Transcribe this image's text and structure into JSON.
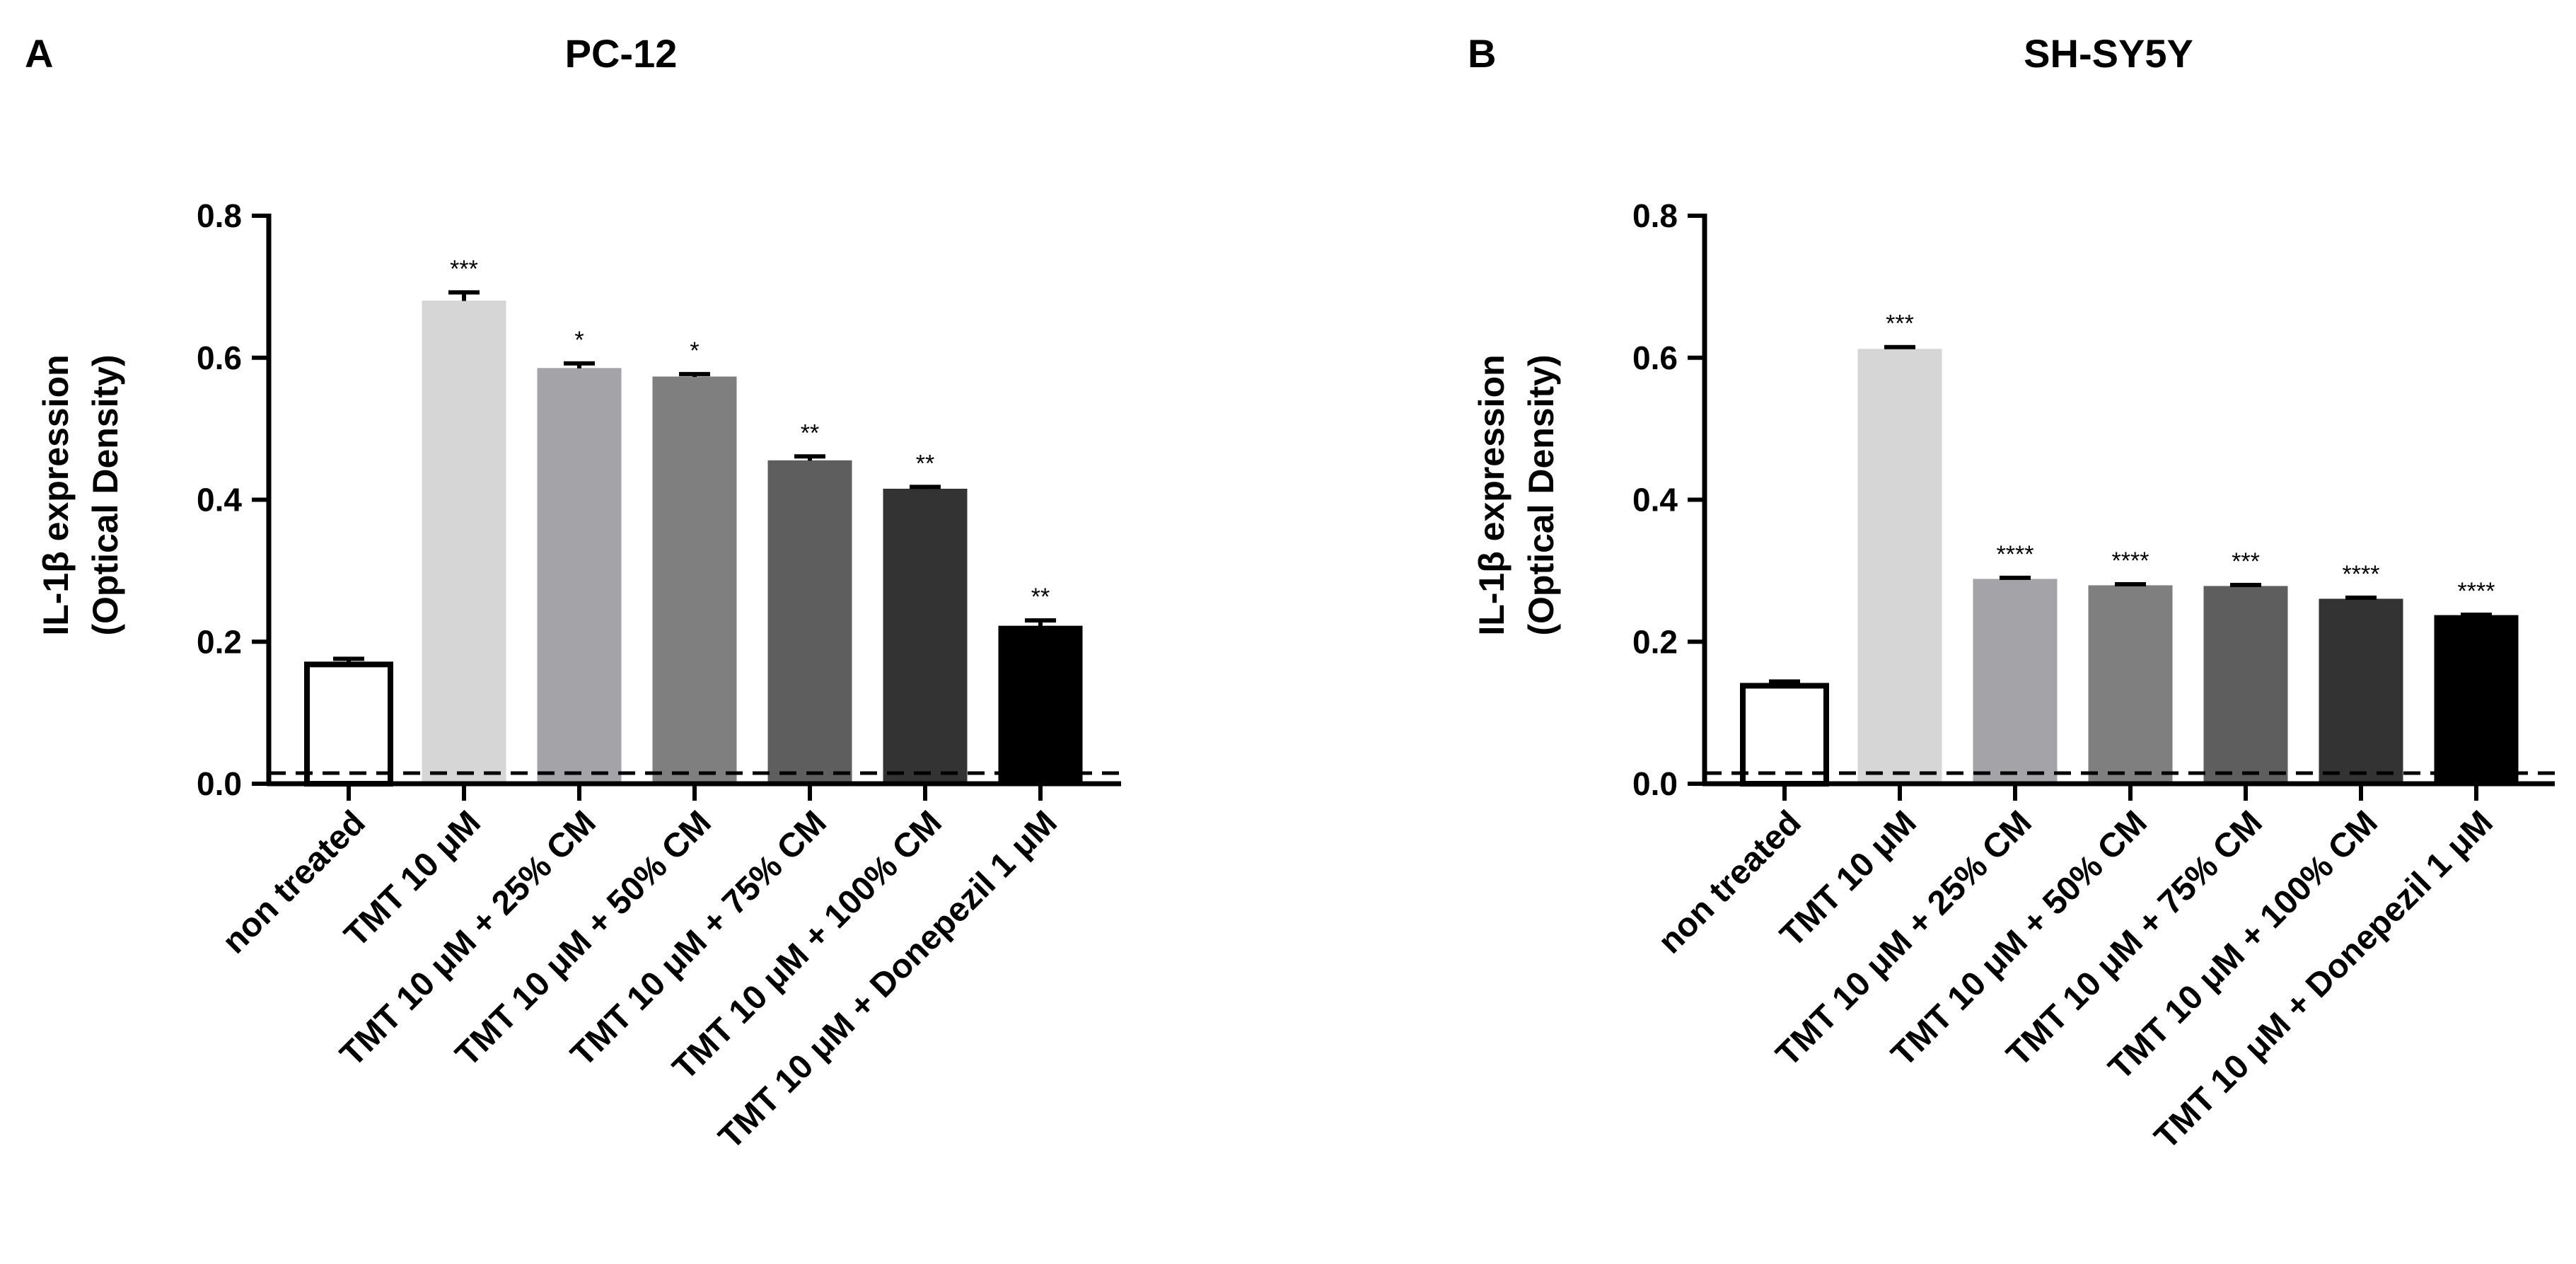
{
  "chart_data": [
    {
      "type": "bar",
      "panel_label": "A",
      "title": "PC-12",
      "xlabel": "",
      "ylabel": [
        "IL-1β expression",
        "(Optical Density)"
      ],
      "ylim": [
        0,
        0.8
      ],
      "yticks": [
        "0.0",
        "0.2",
        "0.4",
        "0.6",
        "0.8"
      ],
      "reference_line": 0.015,
      "categories": [
        "non treated",
        "TMT 10 μM",
        "TMT 10 μM + 25% CM",
        "TMT 10 μM + 50% CM",
        "TMT 10 μM + 75% CM",
        "TMT 10 μM + 100% CM",
        "TMT 10 μM + Donepezil 1 μM"
      ],
      "values": [
        0.168,
        0.68,
        0.585,
        0.573,
        0.455,
        0.415,
        0.222
      ],
      "errors": [
        0.008,
        0.012,
        0.007,
        0.004,
        0.006,
        0.003,
        0.008
      ],
      "significance": [
        "",
        "***",
        "*",
        "*",
        "**",
        "**",
        "**"
      ],
      "bar_colors": [
        "#ffffff",
        "#d6d6d6",
        "#a3a3a8",
        "#7f7f7f",
        "#5e5e5e",
        "#333333",
        "#000000"
      ]
    },
    {
      "type": "bar",
      "panel_label": "B",
      "title": "SH-SY5Y",
      "xlabel": "",
      "ylabel": [
        "IL-1β expression",
        "(Optical Density)"
      ],
      "ylim": [
        0,
        0.8
      ],
      "yticks": [
        "0.0",
        "0.2",
        "0.4",
        "0.6",
        "0.8"
      ],
      "reference_line": 0.015,
      "categories": [
        "non treated",
        "TMT 10 μM",
        "TMT 10 μM + 25% CM",
        "TMT 10 μM + 50% CM",
        "TMT 10 μM + 75% CM",
        "TMT 10 μM + 100% CM",
        "TMT 10 μM + Donepezil 1 μM"
      ],
      "values": [
        0.138,
        0.612,
        0.288,
        0.279,
        0.278,
        0.26,
        0.237
      ],
      "errors": [
        0.006,
        0.003,
        0.002,
        0.002,
        0.002,
        0.002,
        0.001
      ],
      "significance": [
        "",
        "***",
        "****",
        "****",
        "***",
        "****",
        "****"
      ],
      "bar_colors": [
        "#ffffff",
        "#d6d6d6",
        "#a3a3a8",
        "#7f7f7f",
        "#5e5e5e",
        "#333333",
        "#000000"
      ]
    }
  ]
}
